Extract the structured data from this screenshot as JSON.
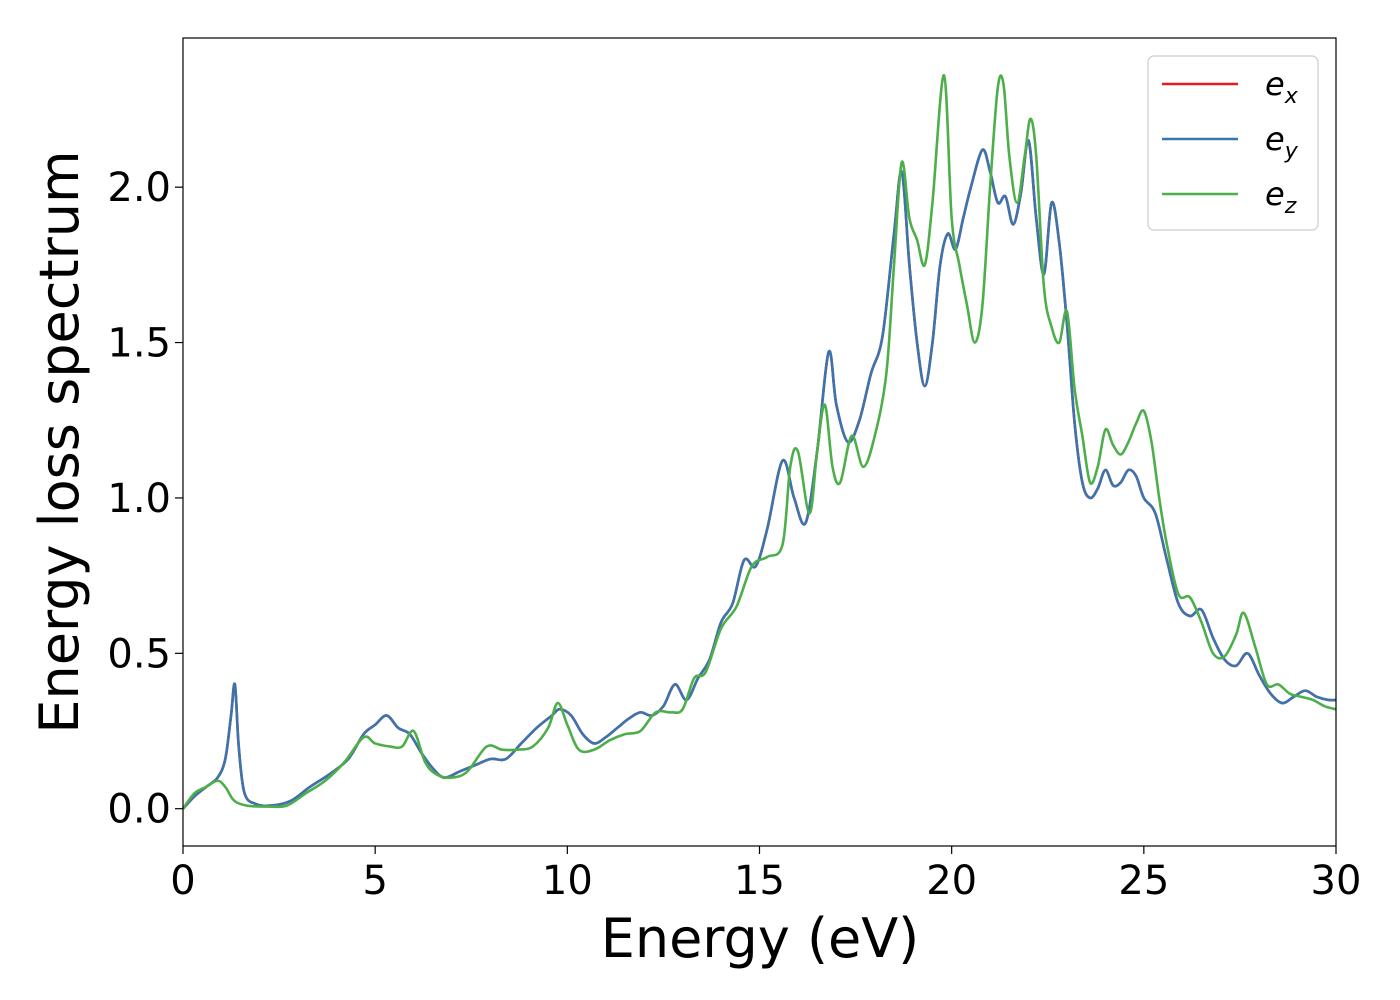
{
  "chart_data": {
    "type": "line",
    "title": "",
    "xlabel": "Energy (eV)",
    "ylabel": "Energy loss spectrum",
    "xlim": [
      0,
      30
    ],
    "ylim": [
      -0.12,
      2.48
    ],
    "xticks": [
      0,
      5,
      10,
      15,
      20,
      25,
      30
    ],
    "xtick_labels": [
      "0",
      "5",
      "10",
      "15",
      "20",
      "25",
      "30"
    ],
    "yticks": [
      0.0,
      0.5,
      1.0,
      1.5,
      2.0
    ],
    "ytick_labels": [
      "0.0",
      "0.5",
      "1.0",
      "1.5",
      "2.0"
    ],
    "grid": false,
    "legend_position": "top-right",
    "series": [
      {
        "name": "e_x",
        "legend_main": "e",
        "legend_sub": "x",
        "color": "#e41a1c",
        "x": [
          0,
          0.3,
          0.6,
          0.9,
          1.1,
          1.25,
          1.35,
          1.45,
          1.6,
          1.9,
          2.3,
          2.8,
          3.3,
          3.8,
          4.3,
          4.7,
          5.0,
          5.3,
          5.6,
          5.9,
          6.2,
          6.5,
          6.8,
          7.2,
          7.6,
          8.0,
          8.4,
          8.8,
          9.2,
          9.6,
          9.8,
          10.1,
          10.4,
          10.7,
          11.0,
          11.3,
          11.6,
          11.9,
          12.2,
          12.5,
          12.8,
          13.1,
          13.4,
          13.7,
          14.0,
          14.3,
          14.6,
          14.9,
          15.2,
          15.6,
          15.9,
          16.2,
          16.5,
          16.8,
          17.0,
          17.3,
          17.6,
          17.9,
          18.2,
          18.5,
          18.7,
          18.9,
          19.1,
          19.3,
          19.5,
          19.7,
          19.9,
          20.1,
          20.3,
          20.5,
          20.8,
          21.0,
          21.2,
          21.4,
          21.6,
          21.8,
          22.0,
          22.2,
          22.4,
          22.6,
          22.8,
          23.0,
          23.2,
          23.4,
          23.6,
          23.8,
          24.0,
          24.2,
          24.4,
          24.6,
          24.8,
          25.0,
          25.3,
          25.6,
          25.9,
          26.2,
          26.5,
          26.8,
          27.1,
          27.4,
          27.7,
          28.0,
          28.3,
          28.6,
          28.9,
          29.2,
          29.5,
          29.8,
          30.0
        ],
        "y": [
          0.0,
          0.04,
          0.07,
          0.1,
          0.16,
          0.3,
          0.4,
          0.2,
          0.05,
          0.015,
          0.01,
          0.025,
          0.07,
          0.11,
          0.16,
          0.24,
          0.27,
          0.3,
          0.26,
          0.24,
          0.18,
          0.13,
          0.1,
          0.12,
          0.14,
          0.16,
          0.16,
          0.21,
          0.26,
          0.3,
          0.32,
          0.3,
          0.24,
          0.21,
          0.23,
          0.26,
          0.29,
          0.31,
          0.3,
          0.33,
          0.4,
          0.35,
          0.42,
          0.48,
          0.6,
          0.66,
          0.8,
          0.78,
          0.9,
          1.12,
          1.0,
          0.92,
          1.15,
          1.47,
          1.3,
          1.18,
          1.25,
          1.4,
          1.52,
          1.85,
          2.05,
          1.75,
          1.5,
          1.36,
          1.5,
          1.75,
          1.85,
          1.8,
          1.9,
          2.0,
          2.12,
          2.05,
          1.95,
          1.97,
          1.88,
          1.98,
          2.15,
          1.9,
          1.72,
          1.95,
          1.82,
          1.56,
          1.24,
          1.05,
          1.0,
          1.03,
          1.09,
          1.04,
          1.05,
          1.09,
          1.07,
          1.0,
          0.95,
          0.8,
          0.66,
          0.62,
          0.64,
          0.55,
          0.48,
          0.46,
          0.5,
          0.43,
          0.37,
          0.34,
          0.36,
          0.38,
          0.36,
          0.35,
          0.35
        ]
      },
      {
        "name": "e_y",
        "legend_main": "e",
        "legend_sub": "y",
        "color": "#3b75af",
        "x": [
          0,
          0.3,
          0.6,
          0.9,
          1.1,
          1.25,
          1.35,
          1.45,
          1.6,
          1.9,
          2.3,
          2.8,
          3.3,
          3.8,
          4.3,
          4.7,
          5.0,
          5.3,
          5.6,
          5.9,
          6.2,
          6.5,
          6.8,
          7.2,
          7.6,
          8.0,
          8.4,
          8.8,
          9.2,
          9.6,
          9.8,
          10.1,
          10.4,
          10.7,
          11.0,
          11.3,
          11.6,
          11.9,
          12.2,
          12.5,
          12.8,
          13.1,
          13.4,
          13.7,
          14.0,
          14.3,
          14.6,
          14.9,
          15.2,
          15.6,
          15.9,
          16.2,
          16.5,
          16.8,
          17.0,
          17.3,
          17.6,
          17.9,
          18.2,
          18.5,
          18.7,
          18.9,
          19.1,
          19.3,
          19.5,
          19.7,
          19.9,
          20.1,
          20.3,
          20.5,
          20.8,
          21.0,
          21.2,
          21.4,
          21.6,
          21.8,
          22.0,
          22.2,
          22.4,
          22.6,
          22.8,
          23.0,
          23.2,
          23.4,
          23.6,
          23.8,
          24.0,
          24.2,
          24.4,
          24.6,
          24.8,
          25.0,
          25.3,
          25.6,
          25.9,
          26.2,
          26.5,
          26.8,
          27.1,
          27.4,
          27.7,
          28.0,
          28.3,
          28.6,
          28.9,
          29.2,
          29.5,
          29.8,
          30.0
        ],
        "y": [
          0.0,
          0.04,
          0.07,
          0.1,
          0.16,
          0.3,
          0.4,
          0.2,
          0.05,
          0.015,
          0.01,
          0.025,
          0.07,
          0.11,
          0.16,
          0.24,
          0.27,
          0.3,
          0.26,
          0.24,
          0.18,
          0.13,
          0.1,
          0.12,
          0.14,
          0.16,
          0.16,
          0.21,
          0.26,
          0.3,
          0.32,
          0.3,
          0.24,
          0.21,
          0.23,
          0.26,
          0.29,
          0.31,
          0.3,
          0.33,
          0.4,
          0.35,
          0.42,
          0.48,
          0.6,
          0.66,
          0.8,
          0.78,
          0.9,
          1.12,
          1.0,
          0.92,
          1.15,
          1.47,
          1.3,
          1.18,
          1.25,
          1.4,
          1.52,
          1.85,
          2.05,
          1.75,
          1.5,
          1.36,
          1.5,
          1.75,
          1.85,
          1.8,
          1.9,
          2.0,
          2.12,
          2.05,
          1.95,
          1.97,
          1.88,
          1.98,
          2.15,
          1.9,
          1.72,
          1.95,
          1.82,
          1.56,
          1.24,
          1.05,
          1.0,
          1.03,
          1.09,
          1.04,
          1.05,
          1.09,
          1.07,
          1.0,
          0.95,
          0.8,
          0.66,
          0.62,
          0.64,
          0.55,
          0.48,
          0.46,
          0.5,
          0.43,
          0.37,
          0.34,
          0.36,
          0.38,
          0.36,
          0.35,
          0.35
        ]
      },
      {
        "name": "e_z",
        "legend_main": "e",
        "legend_sub": "z",
        "color": "#4daf4a",
        "x": [
          0,
          0.3,
          0.6,
          0.9,
          1.1,
          1.3,
          1.5,
          1.8,
          2.2,
          2.7,
          3.2,
          3.7,
          4.2,
          4.7,
          5.0,
          5.4,
          5.7,
          6.0,
          6.3,
          6.6,
          7.0,
          7.4,
          7.9,
          8.3,
          8.7,
          9.1,
          9.5,
          9.75,
          10.0,
          10.3,
          10.7,
          11.1,
          11.5,
          11.9,
          12.3,
          12.7,
          13.0,
          13.3,
          13.6,
          14.0,
          14.4,
          14.8,
          15.2,
          15.6,
          15.8,
          16.0,
          16.3,
          16.5,
          16.7,
          16.9,
          17.1,
          17.4,
          17.7,
          18.0,
          18.3,
          18.5,
          18.7,
          18.9,
          19.1,
          19.3,
          19.5,
          19.8,
          20.0,
          20.2,
          20.4,
          20.6,
          20.8,
          21.0,
          21.2,
          21.35,
          21.5,
          21.7,
          21.9,
          22.05,
          22.2,
          22.4,
          22.6,
          22.8,
          23.0,
          23.2,
          23.4,
          23.6,
          23.8,
          24.0,
          24.2,
          24.4,
          24.6,
          24.8,
          25.0,
          25.2,
          25.4,
          25.6,
          25.9,
          26.2,
          26.5,
          26.8,
          27.1,
          27.4,
          27.6,
          27.9,
          28.2,
          28.5,
          28.8,
          29.1,
          29.4,
          29.7,
          30.0
        ],
        "y": [
          0.0,
          0.05,
          0.07,
          0.09,
          0.07,
          0.03,
          0.015,
          0.008,
          0.007,
          0.01,
          0.05,
          0.09,
          0.15,
          0.23,
          0.21,
          0.2,
          0.2,
          0.25,
          0.15,
          0.11,
          0.1,
          0.12,
          0.2,
          0.19,
          0.19,
          0.2,
          0.26,
          0.34,
          0.27,
          0.19,
          0.19,
          0.22,
          0.24,
          0.25,
          0.31,
          0.31,
          0.32,
          0.42,
          0.44,
          0.58,
          0.65,
          0.78,
          0.81,
          0.85,
          1.1,
          1.15,
          0.95,
          1.15,
          1.3,
          1.1,
          1.05,
          1.2,
          1.1,
          1.2,
          1.4,
          1.75,
          2.08,
          1.9,
          1.83,
          1.75,
          1.95,
          2.36,
          1.9,
          1.75,
          1.62,
          1.5,
          1.62,
          2.0,
          2.32,
          2.33,
          2.1,
          1.95,
          2.1,
          2.22,
          2.1,
          1.68,
          1.55,
          1.5,
          1.6,
          1.35,
          1.2,
          1.05,
          1.1,
          1.22,
          1.17,
          1.14,
          1.18,
          1.24,
          1.28,
          1.18,
          1.0,
          0.85,
          0.69,
          0.68,
          0.6,
          0.5,
          0.49,
          0.56,
          0.63,
          0.52,
          0.4,
          0.4,
          0.37,
          0.36,
          0.35,
          0.33,
          0.32
        ]
      }
    ]
  }
}
